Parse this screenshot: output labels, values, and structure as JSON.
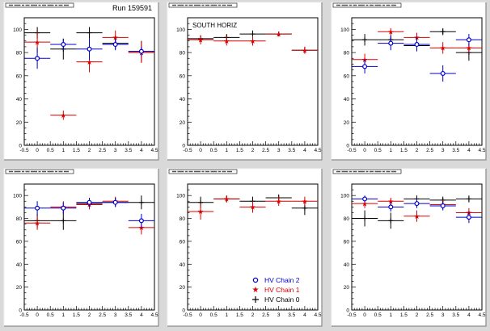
{
  "figure": {
    "run_label": "Run 159591",
    "south_label": "SOUTH HORIZ"
  },
  "legend": {
    "entries": [
      {
        "name": "HV Chain 2",
        "color": "#0000cc",
        "marker": "open-circle"
      },
      {
        "name": "HV Chain 1",
        "color": "#dd0000",
        "marker": "star"
      },
      {
        "name": "HV Chain 0",
        "color": "#000000",
        "marker": "plus"
      }
    ]
  },
  "chart_data": [
    {
      "type": "scatter",
      "title": "",
      "xticks": [
        "-0.5",
        "0",
        "0.5",
        "1",
        "1.5",
        "2",
        "2.5",
        "3",
        "3.5",
        "4",
        "4.5"
      ],
      "yticks": [
        "0",
        "20",
        "40",
        "60",
        "80",
        "100"
      ],
      "xlim": [
        -0.5,
        4.5
      ],
      "ylim": [
        0,
        110
      ],
      "series": [
        {
          "color": "#0000cc",
          "x": [
            0,
            1,
            2,
            3,
            4
          ],
          "y": [
            75,
            87,
            83,
            87,
            81
          ],
          "yerr": [
            9,
            5,
            9,
            5,
            4
          ]
        },
        {
          "color": "#dd0000",
          "x": [
            0,
            1,
            2,
            3,
            4
          ],
          "y": [
            89,
            26,
            72,
            93,
            80
          ],
          "yerr": [
            9,
            4,
            9,
            6,
            9
          ]
        },
        {
          "color": "#000000",
          "x": [
            0,
            1,
            2,
            3,
            4
          ],
          "y": [
            97,
            83,
            97,
            88,
            81
          ],
          "yerr": [
            5,
            9,
            5,
            5,
            9
          ]
        }
      ]
    },
    {
      "type": "scatter",
      "title": "",
      "xticks": [
        "-0.5",
        "0",
        "0.5",
        "1",
        "1.5",
        "2",
        "2.5",
        "3",
        "3.5",
        "4",
        "4.5"
      ],
      "yticks": [
        "0",
        "20",
        "40",
        "60",
        "80",
        "100"
      ],
      "xlim": [
        -0.5,
        4.5
      ],
      "ylim": [
        0,
        110
      ],
      "series": [
        {
          "color": "#dd0000",
          "x": [
            0,
            1,
            2,
            3,
            4
          ],
          "y": [
            91,
            90,
            90,
            96,
            82
          ],
          "yerr": [
            4,
            4,
            4,
            2,
            3
          ]
        },
        {
          "color": "#000000",
          "x": [
            0,
            1,
            2,
            3,
            4
          ],
          "y": [
            92,
            93,
            96,
            96,
            82
          ],
          "yerr": [
            3,
            3,
            3,
            2,
            3
          ]
        }
      ]
    },
    {
      "type": "scatter",
      "title": "",
      "xticks": [
        "-0.5",
        "0",
        "0.5",
        "1",
        "1.5",
        "2",
        "2.5",
        "3",
        "3.5",
        "4",
        "4.5"
      ],
      "yticks": [
        "0",
        "20",
        "40",
        "60",
        "80",
        "100"
      ],
      "xlim": [
        -0.5,
        4.5
      ],
      "ylim": [
        0,
        110
      ],
      "series": [
        {
          "color": "#0000cc",
          "x": [
            0,
            1,
            2,
            3,
            4
          ],
          "y": [
            68,
            88,
            87,
            62,
            91
          ],
          "yerr": [
            6,
            6,
            6,
            7,
            5
          ]
        },
        {
          "color": "#dd0000",
          "x": [
            0,
            1,
            2,
            3,
            4
          ],
          "y": [
            74,
            98,
            93,
            84,
            84
          ],
          "yerr": [
            5,
            3,
            4,
            5,
            4
          ]
        },
        {
          "color": "#000000",
          "x": [
            0,
            1,
            2,
            3,
            4
          ],
          "y": [
            91,
            91,
            86,
            98,
            80
          ],
          "yerr": [
            5,
            4,
            4,
            3,
            7
          ]
        }
      ]
    },
    {
      "type": "scatter",
      "title": "",
      "xticks": [
        "-0.5",
        "0",
        "0.5",
        "1",
        "1.5",
        "2",
        "2.5",
        "3",
        "3.5",
        "4",
        "4.5"
      ],
      "yticks": [
        "0",
        "20",
        "40",
        "60",
        "80",
        "100"
      ],
      "xlim": [
        -0.5,
        4.5
      ],
      "ylim": [
        0,
        110
      ],
      "series": [
        {
          "color": "#0000cc",
          "x": [
            0,
            1,
            2,
            3,
            4
          ],
          "y": [
            89,
            89,
            94,
            94,
            78
          ],
          "yerr": [
            6,
            5,
            4,
            4,
            6
          ]
        },
        {
          "color": "#dd0000",
          "x": [
            0,
            1,
            2,
            3,
            4
          ],
          "y": [
            76,
            90,
            92,
            95,
            72
          ],
          "yerr": [
            6,
            5,
            4,
            4,
            6
          ]
        },
        {
          "color": "#000000",
          "x": [
            0,
            1,
            2,
            3,
            4
          ],
          "y": [
            78,
            78,
            93,
            94,
            94
          ],
          "yerr": [
            6,
            8,
            4,
            4,
            6
          ]
        }
      ]
    },
    {
      "type": "scatter",
      "title": "",
      "xticks": [
        "-0.5",
        "0",
        "0.5",
        "1",
        "1.5",
        "2",
        "2.5",
        "3",
        "3.5",
        "4",
        "4.5"
      ],
      "yticks": [
        "0",
        "20",
        "40",
        "60",
        "80",
        "100"
      ],
      "xlim": [
        -0.5,
        4.5
      ],
      "ylim": [
        0,
        110
      ],
      "series": [
        {
          "color": "#dd0000",
          "x": [
            0,
            1,
            2,
            3,
            4
          ],
          "y": [
            86,
            97,
            90,
            95,
            95
          ],
          "yerr": [
            7,
            3,
            5,
            4,
            4
          ]
        },
        {
          "color": "#000000",
          "x": [
            0,
            1,
            2,
            3,
            4
          ],
          "y": [
            94,
            97,
            95,
            98,
            89
          ],
          "yerr": [
            5,
            3,
            4,
            3,
            6
          ]
        }
      ]
    },
    {
      "type": "scatter",
      "title": "",
      "xticks": [
        "-0.5",
        "0",
        "0.5",
        "1",
        "1.5",
        "2",
        "2.5",
        "3",
        "3.5",
        "4",
        "4.5"
      ],
      "yticks": [
        "0",
        "20",
        "40",
        "60",
        "80",
        "100"
      ],
      "xlim": [
        -0.5,
        4.5
      ],
      "ylim": [
        0,
        110
      ],
      "series": [
        {
          "color": "#0000cc",
          "x": [
            0,
            1,
            2,
            3,
            4
          ],
          "y": [
            97,
            90,
            93,
            91,
            81
          ],
          "yerr": [
            3,
            4,
            4,
            4,
            5
          ]
        },
        {
          "color": "#dd0000",
          "x": [
            0,
            1,
            2,
            3,
            4
          ],
          "y": [
            93,
            95,
            82,
            92,
            85
          ],
          "yerr": [
            4,
            3,
            5,
            4,
            4
          ]
        },
        {
          "color": "#000000",
          "x": [
            0,
            1,
            2,
            3,
            4
          ],
          "y": [
            80,
            78,
            97,
            96,
            97
          ],
          "yerr": [
            7,
            7,
            3,
            3,
            3
          ]
        }
      ]
    }
  ]
}
